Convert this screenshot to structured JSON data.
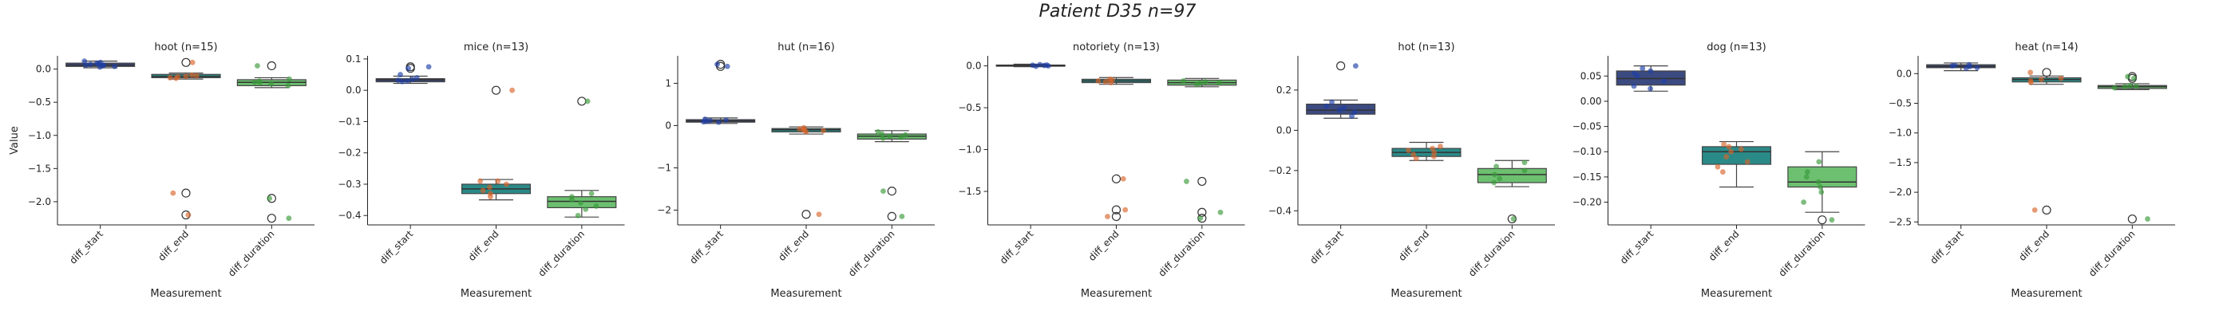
{
  "suptitle": "Patient D35 n=97",
  "colors": {
    "diff_start": "#3b4a80",
    "diff_end": "#2a8a88",
    "diff_duration": "#6cc070",
    "dot_start": "#1f3fa8",
    "dot_end": "#d9652b",
    "dot_duration": "#3a9a3a"
  },
  "chart_data": [
    {
      "type": "box",
      "title": "hoot (n=15)",
      "xlabel": "Measurement",
      "ylabel": "Value",
      "categories": [
        "diff_start",
        "diff_end",
        "diff_duration"
      ],
      "ylim": [
        -2.35,
        0.2
      ],
      "yticks": [
        0.0,
        -0.5,
        -1.0,
        -1.5,
        -2.0
      ],
      "boxes": [
        {
          "q1": 0.04,
          "median": 0.06,
          "q3": 0.09,
          "whisker_low": 0.02,
          "whisker_high": 0.12,
          "outliers": [],
          "points": [
            0.03,
            0.05,
            0.06,
            0.07,
            0.08,
            0.1,
            0.12,
            0.04,
            0.06,
            0.09
          ]
        },
        {
          "q1": -0.13,
          "median": -0.11,
          "q3": -0.08,
          "whisker_low": -0.15,
          "whisker_high": -0.06,
          "outliers": [
            0.1,
            -1.87,
            -2.2
          ],
          "points": [
            -0.12,
            -0.1,
            -0.09,
            -0.13,
            -0.11,
            -0.14,
            0.1,
            -1.87,
            -2.2
          ]
        },
        {
          "q1": -0.25,
          "median": -0.2,
          "q3": -0.16,
          "whisker_low": -0.28,
          "whisker_high": -0.13,
          "outliers": [
            0.05,
            -1.95,
            -2.25
          ],
          "points": [
            -0.22,
            -0.18,
            -0.2,
            -0.25,
            -0.15,
            0.05,
            -1.95,
            -2.25,
            -0.21
          ]
        }
      ]
    },
    {
      "type": "box",
      "title": "mice (n=13)",
      "xlabel": "Measurement",
      "ylabel": "",
      "categories": [
        "diff_start",
        "diff_end",
        "diff_duration"
      ],
      "ylim": [
        -0.43,
        0.11
      ],
      "yticks": [
        0.1,
        0.0,
        -0.1,
        -0.2,
        -0.3,
        -0.4
      ],
      "boxes": [
        {
          "q1": 0.027,
          "median": 0.033,
          "q3": 0.037,
          "whisker_low": 0.022,
          "whisker_high": 0.045,
          "outliers": [
            0.075,
            0.07
          ],
          "points": [
            0.03,
            0.035,
            0.04,
            0.028,
            0.032,
            0.075,
            0.07,
            0.05
          ]
        },
        {
          "q1": -0.33,
          "median": -0.315,
          "q3": -0.3,
          "whisker_low": -0.35,
          "whisker_high": -0.285,
          "outliers": [
            0.0
          ],
          "points": [
            -0.29,
            -0.31,
            -0.32,
            -0.3,
            -0.33,
            -0.34,
            -0.29,
            0.0
          ]
        },
        {
          "q1": -0.375,
          "median": -0.355,
          "q3": -0.34,
          "whisker_low": -0.405,
          "whisker_high": -0.32,
          "outliers": [
            -0.035
          ],
          "points": [
            -0.35,
            -0.37,
            -0.36,
            -0.34,
            -0.38,
            -0.4,
            -0.33,
            -0.035
          ]
        }
      ]
    },
    {
      "type": "box",
      "title": "hut (n=16)",
      "xlabel": "Measurement",
      "ylabel": "",
      "categories": [
        "diff_start",
        "diff_end",
        "diff_duration"
      ],
      "ylim": [
        -2.35,
        1.65
      ],
      "yticks": [
        1,
        0,
        -1,
        -2
      ],
      "boxes": [
        {
          "q1": 0.08,
          "median": 0.11,
          "q3": 0.14,
          "whisker_low": 0.05,
          "whisker_high": 0.18,
          "outliers": [
            1.45,
            1.4
          ],
          "points": [
            0.1,
            0.12,
            0.08,
            0.15,
            0.09,
            1.45,
            1.4,
            0.13
          ]
        },
        {
          "q1": -0.15,
          "median": -0.1,
          "q3": -0.07,
          "whisker_low": -0.2,
          "whisker_high": -0.03,
          "outliers": [
            -2.1
          ],
          "points": [
            -0.12,
            -0.08,
            -0.1,
            -0.15,
            -0.05,
            -2.1,
            -0.11
          ]
        },
        {
          "q1": -0.32,
          "median": -0.25,
          "q3": -0.2,
          "whisker_low": -0.38,
          "whisker_high": -0.12,
          "outliers": [
            -1.55,
            -2.15
          ],
          "points": [
            -0.25,
            -0.3,
            -0.2,
            -0.28,
            -0.15,
            -1.55,
            -2.15,
            -0.22
          ]
        }
      ]
    },
    {
      "type": "box",
      "title": "notoriety (n=13)",
      "xlabel": "Measurement",
      "ylabel": "",
      "categories": [
        "diff_start",
        "diff_end",
        "diff_duration"
      ],
      "ylim": [
        -1.9,
        0.12
      ],
      "yticks": [
        0.0,
        -0.5,
        -1.0,
        -1.5
      ],
      "boxes": [
        {
          "q1": 0.0,
          "median": 0.005,
          "q3": 0.01,
          "whisker_low": -0.01,
          "whisker_high": 0.02,
          "outliers": [],
          "points": [
            0.0,
            0.01,
            0.005,
            0.015,
            -0.005,
            0.008
          ]
        },
        {
          "q1": -0.2,
          "median": -0.18,
          "q3": -0.16,
          "whisker_low": -0.22,
          "whisker_high": -0.14,
          "outliers": [
            -1.35,
            -1.72,
            -1.8
          ],
          "points": [
            -0.18,
            -0.16,
            -0.2,
            -0.19,
            -0.17,
            -1.35,
            -1.72,
            -1.8
          ]
        },
        {
          "q1": -0.23,
          "median": -0.2,
          "q3": -0.17,
          "whisker_low": -0.25,
          "whisker_high": -0.15,
          "outliers": [
            -1.38,
            -1.75,
            -1.82
          ],
          "points": [
            -0.2,
            -0.18,
            -0.22,
            -0.19,
            -0.21,
            -1.38,
            -1.75,
            -1.82
          ]
        }
      ]
    },
    {
      "type": "box",
      "title": "hot (n=13)",
      "xlabel": "Measurement",
      "ylabel": "",
      "categories": [
        "diff_start",
        "diff_end",
        "diff_duration"
      ],
      "ylim": [
        -0.47,
        0.37
      ],
      "yticks": [
        0.2,
        0.0,
        -0.2,
        -0.4
      ],
      "boxes": [
        {
          "q1": 0.08,
          "median": 0.1,
          "q3": 0.13,
          "whisker_low": 0.06,
          "whisker_high": 0.15,
          "outliers": [
            0.32
          ],
          "points": [
            0.09,
            0.11,
            0.1,
            0.12,
            0.07,
            0.32,
            0.14
          ]
        },
        {
          "q1": -0.13,
          "median": -0.11,
          "q3": -0.09,
          "whisker_low": -0.15,
          "whisker_high": -0.06,
          "outliers": [],
          "points": [
            -0.1,
            -0.12,
            -0.11,
            -0.13,
            -0.09,
            -0.08,
            -0.14
          ]
        },
        {
          "q1": -0.26,
          "median": -0.22,
          "q3": -0.19,
          "whisker_low": -0.28,
          "whisker_high": -0.15,
          "outliers": [
            -0.44
          ],
          "points": [
            -0.2,
            -0.24,
            -0.22,
            -0.18,
            -0.26,
            -0.44,
            -0.16
          ]
        }
      ]
    },
    {
      "type": "box",
      "title": "dog (n=13)",
      "xlabel": "Measurement",
      "ylabel": "",
      "categories": [
        "diff_start",
        "diff_end",
        "diff_duration"
      ],
      "ylim": [
        -0.245,
        0.09
      ],
      "yticks": [
        0.05,
        0.0,
        -0.05,
        -0.1,
        -0.15,
        -0.2
      ],
      "boxes": [
        {
          "q1": 0.032,
          "median": 0.045,
          "q3": 0.06,
          "whisker_low": 0.02,
          "whisker_high": 0.07,
          "outliers": [],
          "points": [
            0.04,
            0.05,
            0.06,
            0.03,
            0.065,
            0.025,
            0.055
          ]
        },
        {
          "q1": -0.125,
          "median": -0.1,
          "q3": -0.09,
          "whisker_low": -0.17,
          "whisker_high": -0.08,
          "outliers": [],
          "points": [
            -0.1,
            -0.11,
            -0.09,
            -0.12,
            -0.14,
            -0.085,
            -0.13,
            -0.095
          ]
        },
        {
          "q1": -0.17,
          "median": -0.16,
          "q3": -0.13,
          "whisker_low": -0.22,
          "whisker_high": -0.1,
          "outliers": [
            -0.235
          ],
          "points": [
            -0.15,
            -0.16,
            -0.14,
            -0.18,
            -0.12,
            -0.2,
            -0.235,
            -0.17
          ]
        }
      ]
    },
    {
      "type": "box",
      "title": "heat (n=14)",
      "xlabel": "Measurement",
      "ylabel": "",
      "categories": [
        "diff_start",
        "diff_end",
        "diff_duration"
      ],
      "ylim": [
        -2.55,
        0.3
      ],
      "yticks": [
        0.0,
        -0.5,
        -1.0,
        -1.5,
        -2.0,
        -2.5
      ],
      "boxes": [
        {
          "q1": 0.1,
          "median": 0.12,
          "q3": 0.15,
          "whisker_low": 0.05,
          "whisker_high": 0.18,
          "outliers": [],
          "points": [
            0.12,
            0.14,
            0.1,
            0.15,
            0.09,
            0.13
          ]
        },
        {
          "q1": -0.14,
          "median": -0.1,
          "q3": -0.07,
          "whisker_low": -0.18,
          "whisker_high": -0.04,
          "outliers": [
            0.02,
            -2.3
          ],
          "points": [
            -0.1,
            -0.12,
            -0.08,
            -0.15,
            0.02,
            -2.3
          ]
        },
        {
          "q1": -0.25,
          "median": -0.22,
          "q3": -0.2,
          "whisker_low": -0.27,
          "whisker_high": -0.17,
          "outliers": [
            -0.05,
            -0.08,
            -2.45
          ],
          "points": [
            -0.22,
            -0.24,
            -0.21,
            -0.2,
            -0.05,
            -0.08,
            -2.45
          ]
        }
      ]
    }
  ]
}
